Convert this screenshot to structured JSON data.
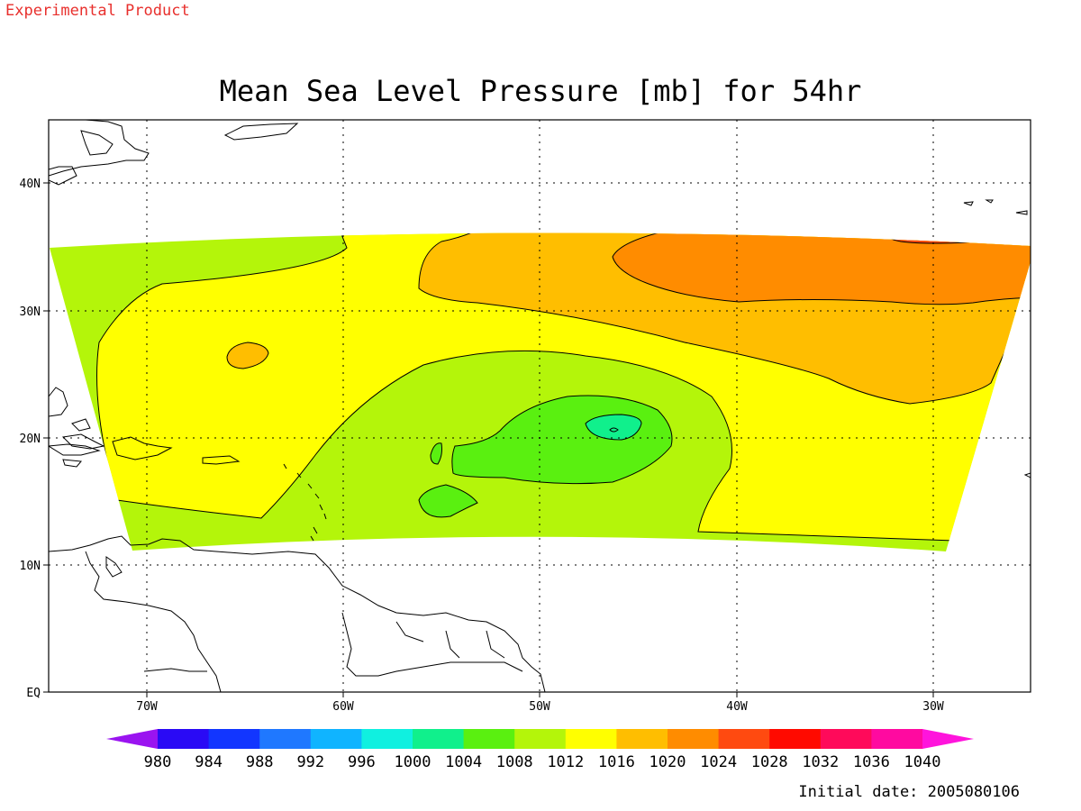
{
  "header": {
    "experimental_label": "Experimental Product"
  },
  "title": "Mean Sea Level Pressure [mb] for 54hr",
  "axes": {
    "lat_labels": [
      "40N",
      "30N",
      "20N",
      "10N",
      "EQ"
    ],
    "lon_labels": [
      "70W",
      "60W",
      "50W",
      "40W",
      "30W"
    ]
  },
  "colorbar": {
    "levels": [
      "980",
      "984",
      "988",
      "992",
      "996",
      "1000",
      "1004",
      "1008",
      "1012",
      "1016",
      "1020",
      "1024",
      "1028",
      "1032",
      "1036",
      "1040"
    ],
    "colors": [
      "#9a14f0",
      "#2a0af5",
      "#1236ff",
      "#1f78ff",
      "#10b4ff",
      "#10f0e0",
      "#10f08c",
      "#5af010",
      "#b4f50a",
      "#ffff00",
      "#ffbe00",
      "#ff8c00",
      "#ff4a10",
      "#ff0a00",
      "#ff0a5a",
      "#ff0aa0",
      "#ff14dc"
    ]
  },
  "footer": {
    "initial_date": "Initial date: 2005080106"
  },
  "field": {
    "name": "Mean Sea Level Pressure",
    "units": "mb",
    "forecast_hour": "54hr"
  }
}
